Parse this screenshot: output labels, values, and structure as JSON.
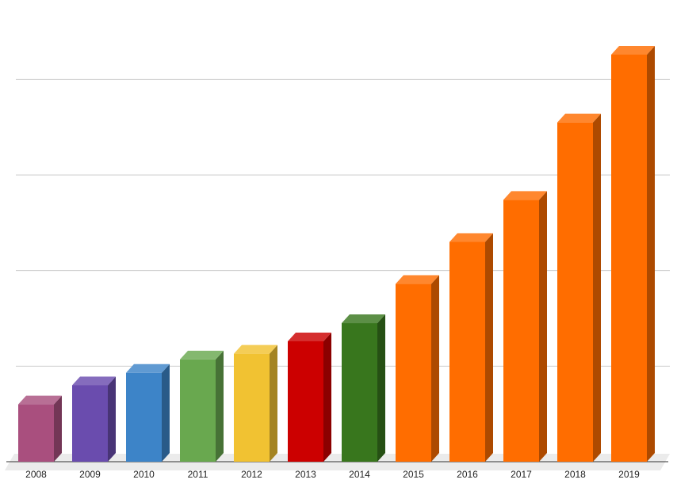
{
  "chart_data": {
    "type": "bar",
    "style": "3d-column",
    "title": "",
    "xlabel": "",
    "ylabel": "",
    "categories": [
      "2008",
      "2009",
      "2010",
      "2011",
      "2012",
      "2013",
      "2014",
      "2015",
      "2016",
      "2017",
      "2018",
      "2019"
    ],
    "values": [
      0.6,
      0.8,
      0.93,
      1.07,
      1.13,
      1.26,
      1.45,
      1.86,
      2.3,
      2.74,
      3.55,
      4.26
    ],
    "colors": [
      "#a94f7e",
      "#6a4cae",
      "#3d84c8",
      "#69a84f",
      "#f1c232",
      "#cc0000",
      "#38761d",
      "#ff6d00",
      "#ff6d00",
      "#ff6d00",
      "#ff6d00",
      "#ff6d00"
    ],
    "ylim": [
      0,
      4.5
    ],
    "grid": true,
    "legend": "none",
    "y_tick_labels_shown": false
  }
}
